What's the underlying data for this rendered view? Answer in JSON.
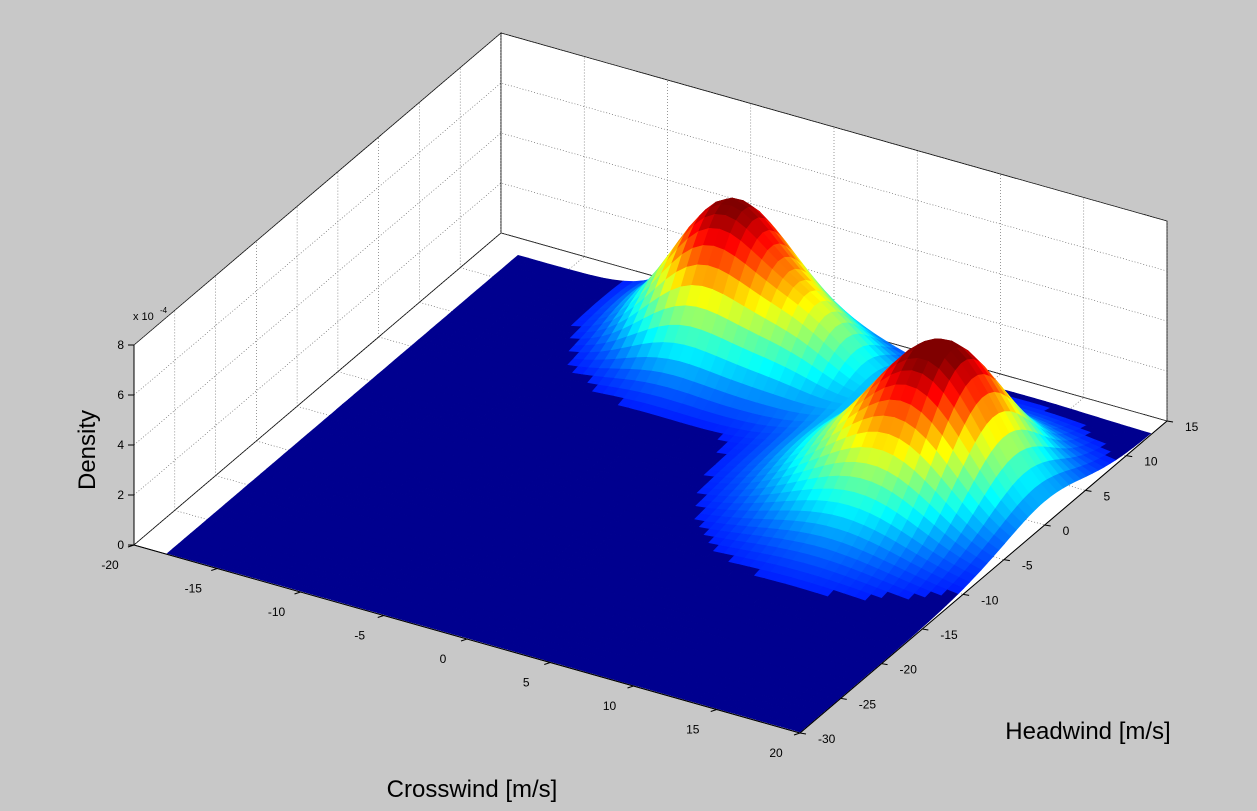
{
  "chart_data": {
    "type": "surface",
    "zlabel": "Density",
    "xlabel": "Crosswind [m/s]",
    "ylabel": "Headwind [m/s]",
    "z_multiplier_label": "x 10",
    "z_multiplier_exponent": "-4",
    "xlim": [
      -20,
      20
    ],
    "ylim": [
      -30,
      15
    ],
    "zlim": [
      0,
      8
    ],
    "x_ticks": [
      "-20",
      "-15",
      "-10",
      "-5",
      "0",
      "5",
      "10",
      "15",
      "20"
    ],
    "y_ticks": [
      "-30",
      "-25",
      "-20",
      "-15",
      "-10",
      "-5",
      "0",
      "5",
      "10",
      "15"
    ],
    "z_ticks": [
      "0",
      "2",
      "4",
      "6",
      "8"
    ],
    "grid": true,
    "colormap": "jet",
    "peaks": [
      {
        "x": -4,
        "y": 10,
        "z": 5.4,
        "sx": 3.0,
        "sy": 4.0
      },
      {
        "x": 2,
        "y": 8,
        "z": 2.6,
        "sx": 3.0,
        "sy": 3.2
      },
      {
        "x": 14,
        "y": 1,
        "z": 3.5,
        "sx": 3.0,
        "sy": 4.0
      },
      {
        "x": 12,
        "y": -2,
        "z": 3.0,
        "sx": 4.2,
        "sy": 5.5
      }
    ],
    "colors": {
      "background": "#c8c8c8",
      "pane": "#ffffff",
      "floor": "#00008f"
    }
  }
}
